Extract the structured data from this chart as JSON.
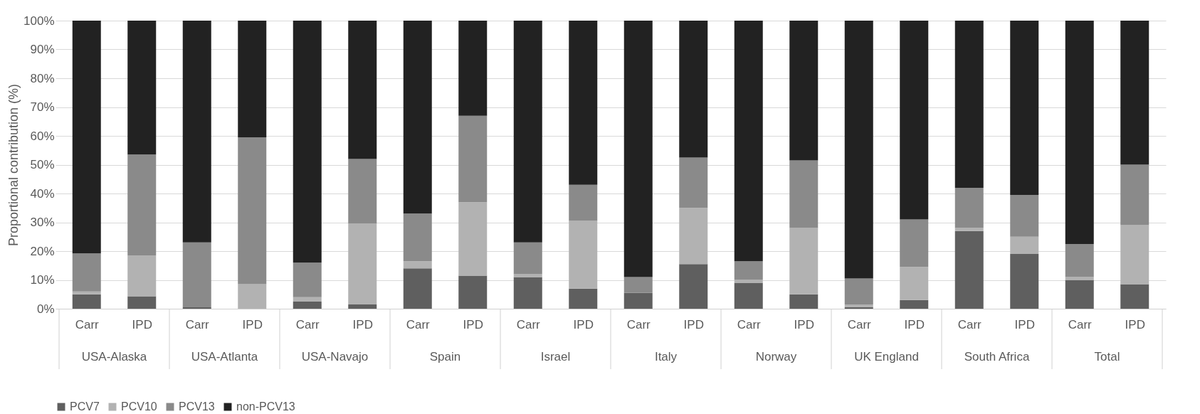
{
  "chart_data": {
    "type": "bar",
    "stacked": true,
    "ylabel": "Proportional contribution (%)",
    "categories": [
      "Carr",
      "IPD",
      "Carr",
      "IPD",
      "Carr",
      "IPD",
      "Carr",
      "IPD",
      "Carr",
      "IPD",
      "Carr",
      "IPD",
      "Carr",
      "IPD",
      "Carr",
      "IPD",
      "Carr",
      "IPD",
      "Carr",
      "IPD"
    ],
    "annotations": [
      "USA-Alaska",
      "USA-Atlanta",
      "USA-Navajo",
      "Spain",
      "Israel",
      "Italy",
      "Norway",
      "UK England",
      "South Africa",
      "Total"
    ],
    "series": [
      {
        "name": "PCV7",
        "color": "#5f5f5f",
        "values": [
          5,
          4.3,
          0.5,
          0,
          2.5,
          1.5,
          14,
          11.5,
          11,
          7,
          5.5,
          15.5,
          9,
          5,
          0.5,
          3,
          27,
          19,
          10,
          8.5
        ]
      },
      {
        "name": "PCV10",
        "color": "#b2b2b2",
        "values": [
          1,
          14.2,
          0,
          8.5,
          1.5,
          28,
          2.5,
          25.5,
          1,
          23.5,
          0,
          19.5,
          1,
          23,
          1,
          11.5,
          1,
          6,
          1,
          20.5
        ]
      },
      {
        "name": "PCV13",
        "color": "#8a8a8a",
        "values": [
          13.2,
          35,
          22.5,
          51,
          12,
          22.5,
          16.5,
          30,
          11,
          12.5,
          5.5,
          17.5,
          6.5,
          23.5,
          9,
          16.5,
          14,
          14.5,
          11.5,
          21
        ]
      },
      {
        "name": "non-PCV13",
        "color": "#222222",
        "values": [
          80.8,
          46.5,
          77,
          40.5,
          84,
          48,
          67,
          33,
          77,
          57,
          89,
          47.5,
          83.5,
          48.5,
          89.5,
          69,
          58,
          60.5,
          77.5,
          50
        ]
      }
    ],
    "ylim": [
      0,
      100
    ],
    "yticks": [
      {
        "value": 0,
        "label": "0%"
      },
      {
        "value": 10,
        "label": "10%"
      },
      {
        "value": 20,
        "label": "20%"
      },
      {
        "value": 30,
        "label": "30%"
      },
      {
        "value": 40,
        "label": "40%"
      },
      {
        "value": 50,
        "label": "50%"
      },
      {
        "value": 60,
        "label": "60%"
      },
      {
        "value": 70,
        "label": "70%"
      },
      {
        "value": 80,
        "label": "80%"
      },
      {
        "value": 90,
        "label": "90%"
      },
      {
        "value": 100,
        "label": "100%"
      }
    ],
    "grid": "y",
    "legend": "bottom"
  }
}
